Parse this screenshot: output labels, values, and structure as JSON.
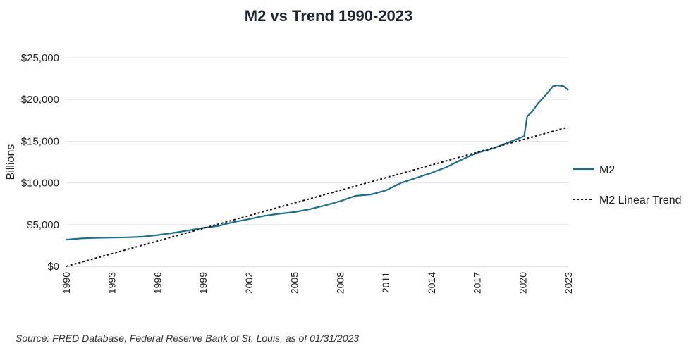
{
  "chart_data": {
    "type": "line",
    "title": "M2 vs Trend 1990-2023",
    "ylabel": "Billions",
    "xlabel": "",
    "xlim": [
      1990,
      2023
    ],
    "ylim": [
      0,
      25000
    ],
    "yticks": [
      0,
      5000,
      10000,
      15000,
      20000,
      25000
    ],
    "ytick_labels": [
      "$0",
      "$5,000",
      "$10,000",
      "$15,000",
      "$20,000",
      "$25,000"
    ],
    "xticks": [
      1990,
      1993,
      1996,
      1999,
      2002,
      2005,
      2008,
      2011,
      2014,
      2017,
      2020,
      2023
    ],
    "xtick_labels": [
      "1990",
      "1993",
      "1996",
      "1999",
      "2002",
      "2005",
      "2008",
      "2011",
      "2014",
      "2017",
      "2020",
      "2023"
    ],
    "grid": true,
    "legend_position": "right",
    "series": [
      {
        "name": "M2",
        "color": "#1f6e8c",
        "style": "solid",
        "x": [
          1990,
          1991,
          1992,
          1993,
          1994,
          1995,
          1996,
          1997,
          1998,
          1999,
          2000,
          2001,
          2002,
          2003,
          2004,
          2005,
          2006,
          2007,
          2008,
          2009,
          2010,
          2011,
          2012,
          2013,
          2014,
          2015,
          2016,
          2017,
          2018,
          2019,
          2020.1,
          2020.3,
          2020.6,
          2021,
          2021.5,
          2022,
          2022.3,
          2022.7,
          2023
        ],
        "y": [
          3200,
          3350,
          3420,
          3450,
          3480,
          3550,
          3750,
          4000,
          4300,
          4600,
          4850,
          5300,
          5650,
          6050,
          6300,
          6500,
          6850,
          7300,
          7800,
          8450,
          8600,
          9100,
          10000,
          10600,
          11200,
          11900,
          12800,
          13600,
          14100,
          14800,
          15600,
          18000,
          18500,
          19500,
          20500,
          21600,
          21700,
          21600,
          21100
        ]
      },
      {
        "name": "M2 Linear Trend",
        "color": "#111111",
        "style": "dotted",
        "x": [
          1990,
          2023
        ],
        "y": [
          0,
          16700
        ]
      }
    ],
    "source": "Source: FRED Database, Federal Reserve Bank of St. Louis, as of 01/31/2023"
  }
}
